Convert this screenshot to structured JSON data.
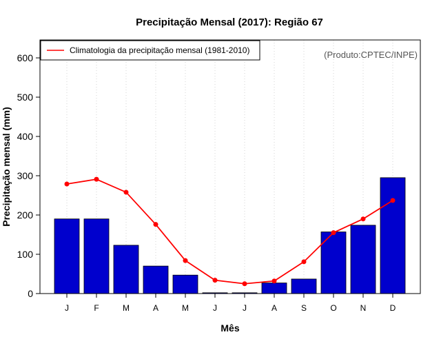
{
  "chart_data": {
    "type": "bar",
    "title": "Precipitação Mensal (2017): Região 67",
    "xlabel": "Mês",
    "ylabel": "Precipitação mensal (mm)",
    "credit": "(Produto:CPTEC/INPE)",
    "categories": [
      "J",
      "F",
      "M",
      "A",
      "M",
      "J",
      "J",
      "A",
      "S",
      "O",
      "N",
      "D"
    ],
    "ylim": [
      0,
      650
    ],
    "yticks": [
      0,
      100,
      200,
      300,
      400,
      500,
      600
    ],
    "bar_series": {
      "name": "Precipitação mensal 2017",
      "color": "#0000CD",
      "values": [
        190,
        190,
        123,
        70,
        47,
        2,
        2,
        27,
        37,
        157,
        174,
        295
      ]
    },
    "line_series": {
      "name": "Climatologia da precipitação mensal (1981-2010)",
      "color": "#FF0000",
      "values": [
        279,
        291,
        258,
        176,
        84,
        34,
        25,
        32,
        81,
        155,
        190,
        237
      ]
    },
    "legend_position": "top-left",
    "grid": "vertical-dotted"
  }
}
